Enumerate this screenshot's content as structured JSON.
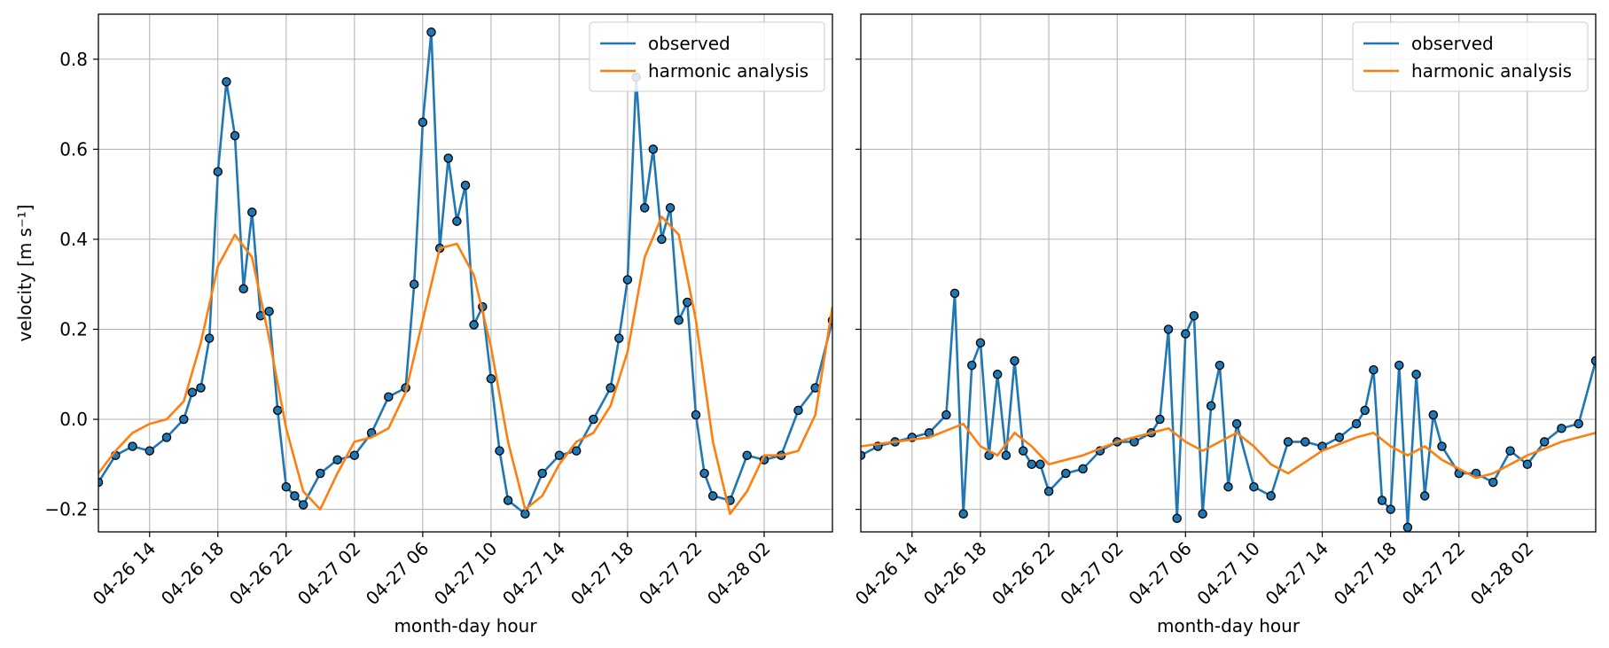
{
  "chart_data": [
    {
      "type": "line",
      "xlabel": "month-day hour",
      "ylabel": "velocity [m s⁻¹]",
      "x_axis_type": "datetime",
      "xlim": [
        "2026-04-26 11:00",
        "2026-04-28 06:00"
      ],
      "ylim": [
        -0.25,
        0.9
      ],
      "x_ticks": [
        "2026-04-26 14:00",
        "2026-04-26 18:00",
        "2026-04-26 22:00",
        "2026-04-27 02:00",
        "2026-04-27 06:00",
        "2026-04-27 10:00",
        "2026-04-27 14:00",
        "2026-04-27 18:00",
        "2026-04-27 22:00",
        "2026-04-28 02:00"
      ],
      "x_tick_labels": [
        "04-26 14",
        "04-26 18",
        "04-26 22",
        "04-27 02",
        "04-27 06",
        "04-27 10",
        "04-27 14",
        "04-27 18",
        "04-27 22",
        "04-28 02"
      ],
      "y_ticks": [
        -0.2,
        0.0,
        0.2,
        0.4,
        0.6,
        0.8
      ],
      "y_tick_labels": [
        "−0.2",
        "0.0",
        "0.2",
        "0.4",
        "0.6",
        "0.8"
      ],
      "grid": true,
      "legend_position": "top-right",
      "series": [
        {
          "name": "observed",
          "color": "#1f77b4",
          "markers": true,
          "marker_face": "#1f77b4",
          "marker_edge": "#000000",
          "x": [
            "2026-04-26 11:00",
            "2026-04-26 12:00",
            "2026-04-26 13:00",
            "2026-04-26 14:00",
            "2026-04-26 15:00",
            "2026-04-26 16:00",
            "2026-04-26 16:30",
            "2026-04-26 17:00",
            "2026-04-26 17:30",
            "2026-04-26 18:00",
            "2026-04-26 18:30",
            "2026-04-26 19:00",
            "2026-04-26 19:30",
            "2026-04-26 20:00",
            "2026-04-26 20:30",
            "2026-04-26 21:00",
            "2026-04-26 21:30",
            "2026-04-26 22:00",
            "2026-04-26 22:30",
            "2026-04-26 23:00",
            "2026-04-27 00:00",
            "2026-04-27 01:00",
            "2026-04-27 02:00",
            "2026-04-27 03:00",
            "2026-04-27 04:00",
            "2026-04-27 05:00",
            "2026-04-27 05:30",
            "2026-04-27 06:00",
            "2026-04-27 06:30",
            "2026-04-27 07:00",
            "2026-04-27 07:30",
            "2026-04-27 08:00",
            "2026-04-27 08:30",
            "2026-04-27 09:00",
            "2026-04-27 09:30",
            "2026-04-27 10:00",
            "2026-04-27 10:30",
            "2026-04-27 11:00",
            "2026-04-27 12:00",
            "2026-04-27 13:00",
            "2026-04-27 14:00",
            "2026-04-27 15:00",
            "2026-04-27 16:00",
            "2026-04-27 17:00",
            "2026-04-27 17:30",
            "2026-04-27 18:00",
            "2026-04-27 18:30",
            "2026-04-27 19:00",
            "2026-04-27 19:30",
            "2026-04-27 20:00",
            "2026-04-27 20:30",
            "2026-04-27 21:00",
            "2026-04-27 21:30",
            "2026-04-27 22:00",
            "2026-04-27 22:30",
            "2026-04-27 23:00",
            "2026-04-28 00:00",
            "2026-04-28 01:00",
            "2026-04-28 02:00",
            "2026-04-28 03:00",
            "2026-04-28 04:00",
            "2026-04-28 05:00",
            "2026-04-28 06:00"
          ],
          "y": [
            -0.14,
            -0.08,
            -0.06,
            -0.07,
            -0.04,
            0.0,
            0.06,
            0.07,
            0.18,
            0.55,
            0.75,
            0.63,
            0.29,
            0.46,
            0.23,
            0.24,
            0.02,
            -0.15,
            -0.17,
            -0.19,
            -0.12,
            -0.09,
            -0.08,
            -0.03,
            0.05,
            0.07,
            0.3,
            0.66,
            0.86,
            0.38,
            0.58,
            0.44,
            0.52,
            0.21,
            0.25,
            0.09,
            -0.07,
            -0.18,
            -0.21,
            -0.12,
            -0.08,
            -0.07,
            0.0,
            0.07,
            0.18,
            0.31,
            0.76,
            0.47,
            0.6,
            0.4,
            0.47,
            0.22,
            0.26,
            0.01,
            -0.12,
            -0.17,
            -0.18,
            -0.08,
            -0.09,
            -0.08,
            0.02,
            0.07,
            0.22
          ]
        },
        {
          "name": "harmonic analysis",
          "color": "#ff7f0e",
          "markers": false,
          "x": [
            "2026-04-26 11:00",
            "2026-04-26 12:00",
            "2026-04-26 13:00",
            "2026-04-26 14:00",
            "2026-04-26 15:00",
            "2026-04-26 16:00",
            "2026-04-26 17:00",
            "2026-04-26 18:00",
            "2026-04-26 19:00",
            "2026-04-26 20:00",
            "2026-04-26 21:00",
            "2026-04-26 22:00",
            "2026-04-26 23:00",
            "2026-04-27 00:00",
            "2026-04-27 01:00",
            "2026-04-27 02:00",
            "2026-04-27 03:00",
            "2026-04-27 04:00",
            "2026-04-27 05:00",
            "2026-04-27 06:00",
            "2026-04-27 07:00",
            "2026-04-27 08:00",
            "2026-04-27 09:00",
            "2026-04-27 10:00",
            "2026-04-27 11:00",
            "2026-04-27 12:00",
            "2026-04-27 13:00",
            "2026-04-27 14:00",
            "2026-04-27 15:00",
            "2026-04-27 16:00",
            "2026-04-27 17:00",
            "2026-04-27 18:00",
            "2026-04-27 19:00",
            "2026-04-27 20:00",
            "2026-04-27 21:00",
            "2026-04-27 22:00",
            "2026-04-27 23:00",
            "2026-04-28 00:00",
            "2026-04-28 01:00",
            "2026-04-28 02:00",
            "2026-04-28 03:00",
            "2026-04-28 04:00",
            "2026-04-28 05:00",
            "2026-04-28 06:00"
          ],
          "y": [
            -0.12,
            -0.07,
            -0.03,
            -0.01,
            0.0,
            0.04,
            0.17,
            0.34,
            0.41,
            0.36,
            0.18,
            -0.02,
            -0.16,
            -0.2,
            -0.12,
            -0.05,
            -0.04,
            -0.02,
            0.06,
            0.22,
            0.38,
            0.39,
            0.32,
            0.16,
            -0.05,
            -0.2,
            -0.17,
            -0.1,
            -0.05,
            -0.03,
            0.03,
            0.15,
            0.36,
            0.45,
            0.41,
            0.22,
            -0.05,
            -0.21,
            -0.16,
            -0.08,
            -0.08,
            -0.07,
            0.01,
            0.25
          ]
        }
      ]
    },
    {
      "type": "line",
      "xlabel": "month-day hour",
      "ylabel": "",
      "x_axis_type": "datetime",
      "xlim": [
        "2026-04-26 11:00",
        "2026-04-28 06:00"
      ],
      "ylim": [
        -0.25,
        0.9
      ],
      "x_ticks": [
        "2026-04-26 14:00",
        "2026-04-26 18:00",
        "2026-04-26 22:00",
        "2026-04-27 02:00",
        "2026-04-27 06:00",
        "2026-04-27 10:00",
        "2026-04-27 14:00",
        "2026-04-27 18:00",
        "2026-04-27 22:00",
        "2026-04-28 02:00"
      ],
      "x_tick_labels": [
        "04-26 14",
        "04-26 18",
        "04-26 22",
        "04-27 02",
        "04-27 06",
        "04-27 10",
        "04-27 14",
        "04-27 18",
        "04-27 22",
        "04-28 02"
      ],
      "y_ticks": [
        -0.2,
        0.0,
        0.2,
        0.4,
        0.6,
        0.8
      ],
      "y_tick_labels": [],
      "grid": true,
      "legend_position": "top-right",
      "series": [
        {
          "name": "observed",
          "color": "#1f77b4",
          "markers": true,
          "marker_face": "#1f77b4",
          "marker_edge": "#000000",
          "x": [
            "2026-04-26 11:00",
            "2026-04-26 12:00",
            "2026-04-26 13:00",
            "2026-04-26 14:00",
            "2026-04-26 15:00",
            "2026-04-26 16:00",
            "2026-04-26 16:30",
            "2026-04-26 17:00",
            "2026-04-26 17:30",
            "2026-04-26 18:00",
            "2026-04-26 18:30",
            "2026-04-26 19:00",
            "2026-04-26 19:30",
            "2026-04-26 20:00",
            "2026-04-26 20:30",
            "2026-04-26 21:00",
            "2026-04-26 21:30",
            "2026-04-26 22:00",
            "2026-04-26 23:00",
            "2026-04-27 00:00",
            "2026-04-27 01:00",
            "2026-04-27 02:00",
            "2026-04-27 03:00",
            "2026-04-27 04:00",
            "2026-04-27 04:30",
            "2026-04-27 05:00",
            "2026-04-27 05:30",
            "2026-04-27 06:00",
            "2026-04-27 06:30",
            "2026-04-27 07:00",
            "2026-04-27 07:30",
            "2026-04-27 08:00",
            "2026-04-27 08:30",
            "2026-04-27 09:00",
            "2026-04-27 10:00",
            "2026-04-27 11:00",
            "2026-04-27 12:00",
            "2026-04-27 13:00",
            "2026-04-27 14:00",
            "2026-04-27 15:00",
            "2026-04-27 16:00",
            "2026-04-27 16:30",
            "2026-04-27 17:00",
            "2026-04-27 17:30",
            "2026-04-27 18:00",
            "2026-04-27 18:30",
            "2026-04-27 19:00",
            "2026-04-27 19:30",
            "2026-04-27 20:00",
            "2026-04-27 20:30",
            "2026-04-27 21:00",
            "2026-04-27 22:00",
            "2026-04-27 23:00",
            "2026-04-28 00:00",
            "2026-04-28 01:00",
            "2026-04-28 02:00",
            "2026-04-28 03:00",
            "2026-04-28 04:00",
            "2026-04-28 05:00",
            "2026-04-28 06:00"
          ],
          "y": [
            -0.08,
            -0.06,
            -0.05,
            -0.04,
            -0.03,
            0.01,
            0.28,
            -0.21,
            0.12,
            0.17,
            -0.08,
            0.1,
            -0.08,
            0.13,
            -0.07,
            -0.1,
            -0.1,
            -0.16,
            -0.12,
            -0.11,
            -0.07,
            -0.05,
            -0.05,
            -0.03,
            0.0,
            0.2,
            -0.22,
            0.19,
            0.23,
            -0.21,
            0.03,
            0.12,
            -0.15,
            -0.01,
            -0.15,
            -0.17,
            -0.05,
            -0.05,
            -0.06,
            -0.04,
            -0.01,
            0.02,
            0.11,
            -0.18,
            -0.2,
            0.12,
            -0.24,
            0.1,
            -0.17,
            0.01,
            -0.06,
            -0.12,
            -0.12,
            -0.14,
            -0.07,
            -0.1,
            -0.05,
            -0.02,
            -0.01,
            0.13
          ]
        },
        {
          "name": "harmonic analysis",
          "color": "#ff7f0e",
          "markers": false,
          "x": [
            "2026-04-26 11:00",
            "2026-04-26 13:00",
            "2026-04-26 15:00",
            "2026-04-26 17:00",
            "2026-04-26 18:00",
            "2026-04-26 19:00",
            "2026-04-26 20:00",
            "2026-04-26 21:00",
            "2026-04-26 22:00",
            "2026-04-27 00:00",
            "2026-04-27 02:00",
            "2026-04-27 04:00",
            "2026-04-27 05:00",
            "2026-04-27 06:00",
            "2026-04-27 07:00",
            "2026-04-27 08:00",
            "2026-04-27 09:00",
            "2026-04-27 10:00",
            "2026-04-27 11:00",
            "2026-04-27 12:00",
            "2026-04-27 14:00",
            "2026-04-27 16:00",
            "2026-04-27 17:00",
            "2026-04-27 18:00",
            "2026-04-27 19:00",
            "2026-04-27 20:00",
            "2026-04-27 21:00",
            "2026-04-27 22:00",
            "2026-04-27 23:00",
            "2026-04-28 00:00",
            "2026-04-28 02:00",
            "2026-04-28 04:00",
            "2026-04-28 06:00"
          ],
          "y": [
            -0.06,
            -0.05,
            -0.04,
            -0.01,
            -0.06,
            -0.08,
            -0.03,
            -0.06,
            -0.1,
            -0.08,
            -0.05,
            -0.03,
            -0.02,
            -0.05,
            -0.07,
            -0.05,
            -0.03,
            -0.06,
            -0.1,
            -0.12,
            -0.07,
            -0.04,
            -0.03,
            -0.06,
            -0.08,
            -0.06,
            -0.09,
            -0.11,
            -0.13,
            -0.12,
            -0.08,
            -0.05,
            -0.03
          ]
        }
      ]
    }
  ]
}
